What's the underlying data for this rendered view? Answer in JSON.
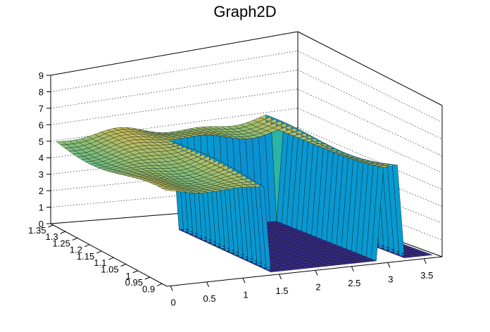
{
  "chart_data": {
    "type": "surface3d",
    "title": "Graph2D",
    "xlabel": "",
    "ylabel": "",
    "zlabel": "",
    "x_ticks": [
      "0",
      "0.5",
      "1",
      "1.5",
      "2",
      "2.5",
      "3",
      "3.5"
    ],
    "y_ticks": [
      "0.9",
      "0.95",
      "1",
      "1.05",
      "1.1",
      "1.15",
      "1.2",
      "1.25",
      "1.3",
      "1.35"
    ],
    "z_ticks": [
      "0",
      "1",
      "2",
      "3",
      "4",
      "5",
      "6",
      "7",
      "8",
      "9"
    ],
    "xlim": [
      -0.05,
      3.75
    ],
    "ylim": [
      0.88,
      1.36
    ],
    "zlim": [
      0,
      9
    ],
    "grid": true,
    "colormap": "parula",
    "surface": {
      "plateau_level": 5.3,
      "plateau_x_range": [
        0.0,
        3.2
      ],
      "low_level": 0.0,
      "low_region_x_range": [
        1.45,
        2.95
      ],
      "low_region_y_range": [
        0.9,
        1.26
      ],
      "steps": [
        {
          "x": 1.45,
          "from": 5.3,
          "to": 0.0
        },
        {
          "x": 2.95,
          "from": 0.0,
          "to": 5.3
        }
      ]
    }
  }
}
